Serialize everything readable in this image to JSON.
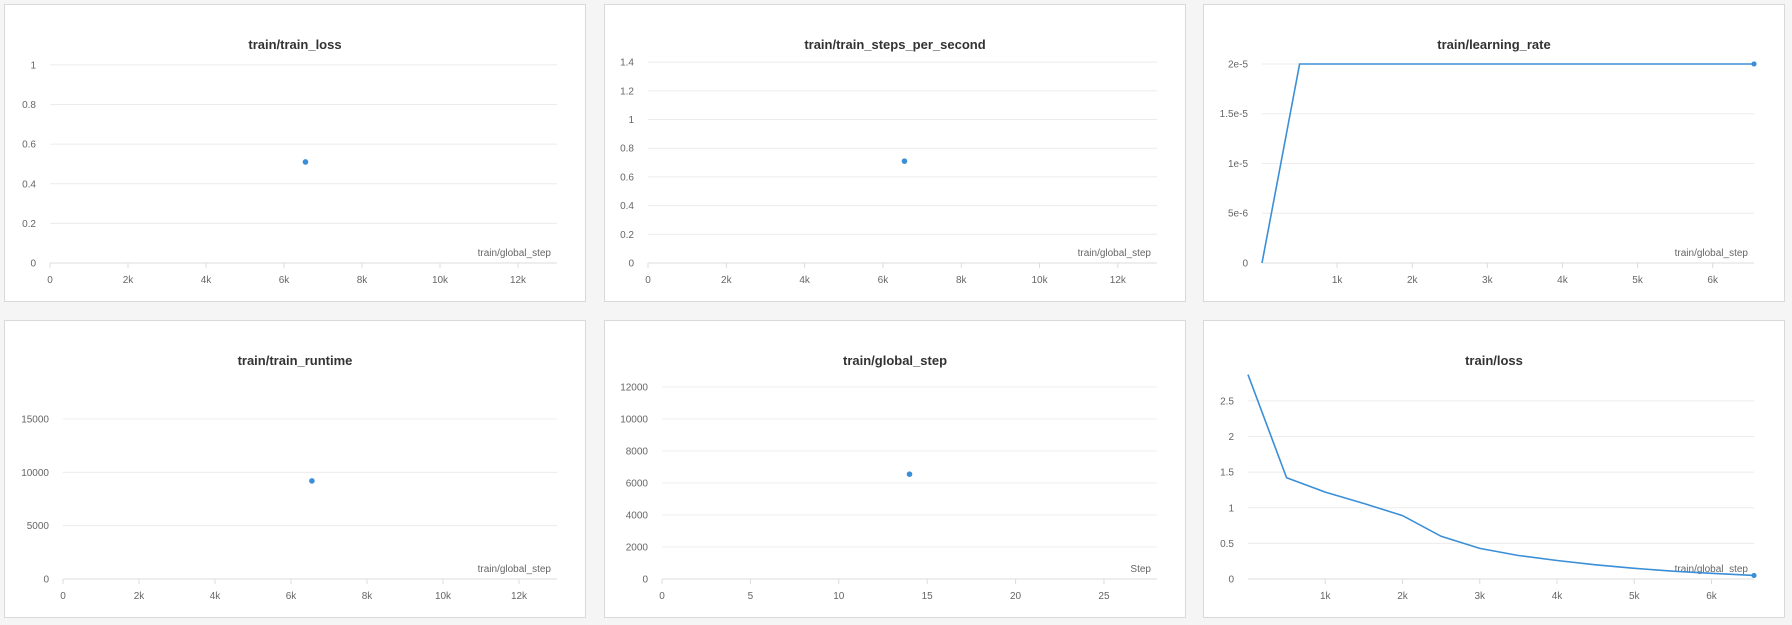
{
  "accent_color": "#3a8fd6",
  "chart_data": [
    {
      "type": "scatter",
      "title": "train/train_loss",
      "xlabel": "train/global_step",
      "ylabel": "",
      "xlim": [
        0,
        13000
      ],
      "ylim": [
        0,
        1.05
      ],
      "xticks": [
        {
          "v": 0,
          "t": "0"
        },
        {
          "v": 2000,
          "t": "2k"
        },
        {
          "v": 4000,
          "t": "4k"
        },
        {
          "v": 6000,
          "t": "6k"
        },
        {
          "v": 8000,
          "t": "8k"
        },
        {
          "v": 10000,
          "t": "10k"
        },
        {
          "v": 12000,
          "t": "12k"
        }
      ],
      "yticks": [
        {
          "v": 0,
          "t": "0"
        },
        {
          "v": 0.2,
          "t": "0.2"
        },
        {
          "v": 0.4,
          "t": "0.4"
        },
        {
          "v": 0.6,
          "t": "0.6"
        },
        {
          "v": 0.8,
          "t": "0.8"
        },
        {
          "v": 1,
          "t": "1"
        }
      ],
      "series": [
        {
          "x": [
            6550
          ],
          "y": [
            0.51
          ]
        }
      ]
    },
    {
      "type": "scatter",
      "title": "train/train_steps_per_second",
      "xlabel": "train/global_step",
      "ylabel": "",
      "xlim": [
        0,
        13000
      ],
      "ylim": [
        0,
        1.45
      ],
      "xticks": [
        {
          "v": 0,
          "t": "0"
        },
        {
          "v": 2000,
          "t": "2k"
        },
        {
          "v": 4000,
          "t": "4k"
        },
        {
          "v": 6000,
          "t": "6k"
        },
        {
          "v": 8000,
          "t": "8k"
        },
        {
          "v": 10000,
          "t": "10k"
        },
        {
          "v": 12000,
          "t": "12k"
        }
      ],
      "yticks": [
        {
          "v": 0,
          "t": "0"
        },
        {
          "v": 0.2,
          "t": "0.2"
        },
        {
          "v": 0.4,
          "t": "0.4"
        },
        {
          "v": 0.6,
          "t": "0.6"
        },
        {
          "v": 0.8,
          "t": "0.8"
        },
        {
          "v": 1,
          "t": "1"
        },
        {
          "v": 1.2,
          "t": "1.2"
        },
        {
          "v": 1.4,
          "t": "1.4"
        }
      ],
      "series": [
        {
          "x": [
            6550
          ],
          "y": [
            0.71
          ]
        }
      ]
    },
    {
      "type": "line",
      "title": "train/learning_rate",
      "xlabel": "train/global_step",
      "ylabel": "",
      "xlim": [
        0,
        6550
      ],
      "ylim": [
        0,
        2.1e-05
      ],
      "xticks": [
        {
          "v": 1000,
          "t": "1k"
        },
        {
          "v": 2000,
          "t": "2k"
        },
        {
          "v": 3000,
          "t": "3k"
        },
        {
          "v": 4000,
          "t": "4k"
        },
        {
          "v": 5000,
          "t": "5k"
        },
        {
          "v": 6000,
          "t": "6k"
        }
      ],
      "yticks": [
        {
          "v": 0,
          "t": "0"
        },
        {
          "v": 5e-06,
          "t": "5e-6"
        },
        {
          "v": 1e-05,
          "t": "1e-5"
        },
        {
          "v": 1.5e-05,
          "t": "1.5e-5"
        },
        {
          "v": 2e-05,
          "t": "2e-5"
        }
      ],
      "series": [
        {
          "x": [
            0,
            500,
            6550
          ],
          "y": [
            0,
            2e-05,
            2e-05
          ],
          "end_dot": true
        }
      ]
    },
    {
      "type": "scatter",
      "title": "train/train_runtime",
      "xlabel": "train/global_step",
      "ylabel": "",
      "xlim": [
        0,
        13000
      ],
      "ylim": [
        0,
        19500
      ],
      "xticks": [
        {
          "v": 0,
          "t": "0"
        },
        {
          "v": 2000,
          "t": "2k"
        },
        {
          "v": 4000,
          "t": "4k"
        },
        {
          "v": 6000,
          "t": "6k"
        },
        {
          "v": 8000,
          "t": "8k"
        },
        {
          "v": 10000,
          "t": "10k"
        },
        {
          "v": 12000,
          "t": "12k"
        }
      ],
      "yticks": [
        {
          "v": 0,
          "t": "0"
        },
        {
          "v": 5000,
          "t": "5000"
        },
        {
          "v": 10000,
          "t": "10000"
        },
        {
          "v": 15000,
          "t": "15000"
        }
      ],
      "series": [
        {
          "x": [
            6550
          ],
          "y": [
            9200
          ]
        }
      ]
    },
    {
      "type": "scatter",
      "title": "train/global_step",
      "xlabel": "Step",
      "ylabel": "",
      "xlim": [
        0,
        28
      ],
      "ylim": [
        0,
        13000
      ],
      "xticks": [
        {
          "v": 0,
          "t": "0"
        },
        {
          "v": 5,
          "t": "5"
        },
        {
          "v": 10,
          "t": "10"
        },
        {
          "v": 15,
          "t": "15"
        },
        {
          "v": 20,
          "t": "20"
        },
        {
          "v": 25,
          "t": "25"
        }
      ],
      "yticks": [
        {
          "v": 0,
          "t": "0"
        },
        {
          "v": 2000,
          "t": "2000"
        },
        {
          "v": 4000,
          "t": "4000"
        },
        {
          "v": 6000,
          "t": "6000"
        },
        {
          "v": 8000,
          "t": "8000"
        },
        {
          "v": 10000,
          "t": "10000"
        },
        {
          "v": 12000,
          "t": "12000"
        }
      ],
      "series": [
        {
          "x": [
            14
          ],
          "y": [
            6550
          ]
        }
      ]
    },
    {
      "type": "line",
      "title": "train/loss",
      "xlabel": "train/global_step",
      "ylabel": "",
      "xlim": [
        0,
        6550
      ],
      "ylim": [
        0,
        2.92
      ],
      "xticks": [
        {
          "v": 1000,
          "t": "1k"
        },
        {
          "v": 2000,
          "t": "2k"
        },
        {
          "v": 3000,
          "t": "3k"
        },
        {
          "v": 4000,
          "t": "4k"
        },
        {
          "v": 5000,
          "t": "5k"
        },
        {
          "v": 6000,
          "t": "6k"
        }
      ],
      "yticks": [
        {
          "v": 0,
          "t": "0"
        },
        {
          "v": 0.5,
          "t": "0.5"
        },
        {
          "v": 1,
          "t": "1"
        },
        {
          "v": 1.5,
          "t": "1.5"
        },
        {
          "v": 2,
          "t": "2"
        },
        {
          "v": 2.5,
          "t": "2.5"
        }
      ],
      "series": [
        {
          "x": [
            0,
            500,
            1000,
            1500,
            2000,
            2500,
            3000,
            3500,
            4000,
            4500,
            5000,
            5500,
            6000,
            6550
          ],
          "y": [
            2.87,
            1.42,
            1.22,
            1.06,
            0.89,
            0.6,
            0.43,
            0.33,
            0.26,
            0.2,
            0.15,
            0.11,
            0.08,
            0.05
          ],
          "end_dot": true
        }
      ]
    }
  ]
}
